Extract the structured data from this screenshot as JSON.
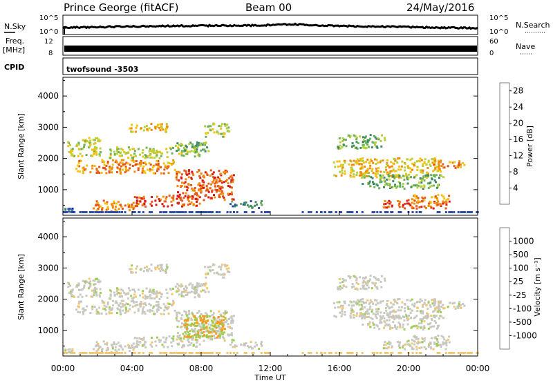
{
  "header": {
    "station": "Prince George (fitACF)",
    "beam": "Beam 00",
    "date": "24/May/2016"
  },
  "strip_labels": {
    "nsky": "N.Sky",
    "nsearch": "N.Search",
    "freq_top": "Freq.",
    "freq_unit": "[MHz]",
    "nave": "Nave",
    "cpid": "CPID",
    "cpid_value": "twofsound -3503",
    "noise_left_top": "10^5",
    "noise_left_bot": "10^0",
    "noise_right_top": "10^5",
    "noise_right_bot": "10^0",
    "freq_left_top": "12",
    "freq_left_bot": "8",
    "nave_right_top": "60",
    "nave_right_bot": "0"
  },
  "colors": {
    "power_scale": [
      "#0a0af0",
      "#2d4fa8",
      "#3f8a63",
      "#6bb35a",
      "#b8cf3c",
      "#f2c20f",
      "#f28a0c",
      "#e4561b",
      "#d91818"
    ],
    "velocity_scale": [
      "#e31a1c",
      "#f35c1f",
      "#f79a1e",
      "#f6c66a",
      "#c8c8c0",
      "#9ccf4d",
      "#3daa3d",
      "#2b7f59",
      "#2f3fa0"
    ]
  },
  "chart_data": [
    {
      "type": "heatmap",
      "panel": "power",
      "x_range": [
        "00:00",
        "24:00"
      ],
      "ylabel": "Slant Range [km]",
      "yticks": [
        1000,
        2000,
        3000,
        4000
      ],
      "ylim": [
        180,
        4600
      ],
      "colorbar": {
        "label": "Power [dB]",
        "ticks": [
          4,
          8,
          12,
          16,
          20,
          24,
          28
        ],
        "range": [
          0,
          30
        ]
      }
    },
    {
      "type": "heatmap",
      "panel": "velocity",
      "x_range": [
        "00:00",
        "24:00"
      ],
      "ylabel": "Slant Range [km]",
      "yticks": [
        1000,
        2000,
        3000,
        4000
      ],
      "ylim": [
        180,
        4600
      ],
      "colorbar": {
        "label": "Velocity [m s⁻¹]",
        "ticks": [
          "1000",
          "500",
          "100",
          "25",
          "-25",
          "-100",
          "-500",
          "-1000"
        ]
      }
    }
  ],
  "xaxis": {
    "ticks": [
      "00:00",
      "04:00",
      "08:00",
      "12:00",
      "16:00",
      "20:00",
      "00:00"
    ],
    "label": "Time UT"
  }
}
